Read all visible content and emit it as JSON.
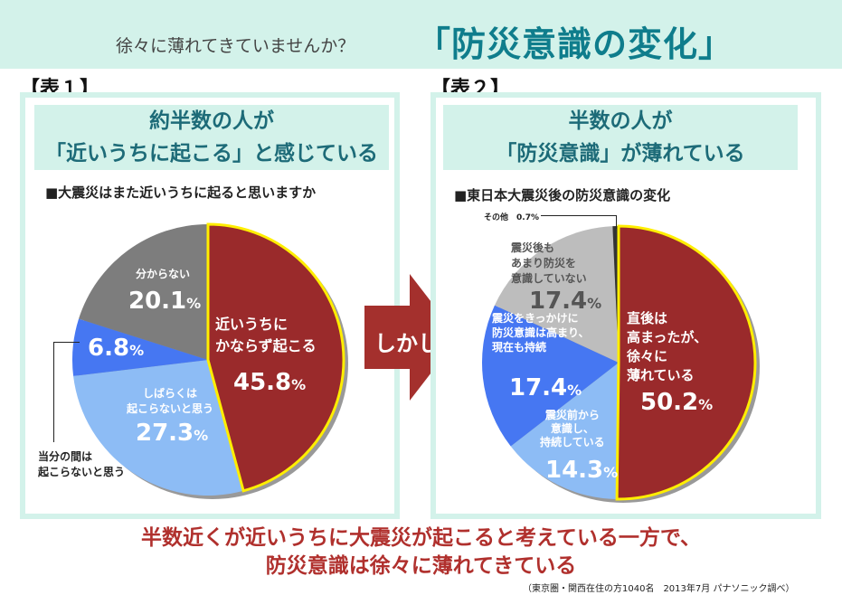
{
  "header": {
    "subtitle": "徐々に薄れてきていませんか？",
    "title": "「防災意識の変化」"
  },
  "panels": [
    {
      "tag": "【表１】",
      "heading": [
        "約半数の人が",
        "「近いうちに起こる」と感じている"
      ],
      "question": "■大震災はまた近いうちに起ると思いますか"
    },
    {
      "tag": "【表２】",
      "heading": [
        "半数の人が",
        "「防災意識」が薄れている"
      ],
      "question": "■東日本大震災後の防災意識の変化"
    }
  ],
  "arrow_label": "しかし",
  "conclusion": [
    "半数近くが近いうちに大震災が起こると考えている一方で、",
    "防災意識は徐々に薄れてきている"
  ],
  "source": "（東京圏・関西在住の方1040名　2013年7月 パナソニック調べ）",
  "chart_data": [
    {
      "type": "pie",
      "title": "大震災はまた近いうちに起ると思いますか",
      "unit": "%",
      "slices": [
        {
          "label": "近いうちにかならず起こる",
          "value": 45.8,
          "display": "45.8",
          "color": "#9a2a2b",
          "highlight": true
        },
        {
          "label": "しばらくは起こらないと思う",
          "value": 27.3,
          "display": "27.3",
          "color": "#8dbcf5"
        },
        {
          "label": "当分の間は起こらないと思う",
          "value": 6.8,
          "display": "6.8",
          "color": "#4677f2"
        },
        {
          "label": "分からない",
          "value": 20.1,
          "display": "20.1",
          "color": "#7d7d7d"
        }
      ]
    },
    {
      "type": "pie",
      "title": "東日本大震災後の防災意識の変化",
      "unit": "%",
      "slices": [
        {
          "label": "直後は高まったが、徐々に薄れている",
          "value": 50.2,
          "display": "50.2",
          "color": "#9a2a2b",
          "highlight": true
        },
        {
          "label": "震災前から意識し、持続している",
          "value": 14.3,
          "display": "14.3",
          "color": "#8dbcf5"
        },
        {
          "label": "震災をきっかけに防災意識は高まり、現在も持続",
          "value": 17.4,
          "display": "17.4",
          "color": "#4677f2"
        },
        {
          "label": "震災後もあまり防災を意識していない",
          "value": 17.4,
          "display": "17.4",
          "color": "#bdbdbd"
        },
        {
          "label": "その他",
          "value": 0.7,
          "display": "0.7%",
          "color": "#333333"
        }
      ]
    }
  ]
}
